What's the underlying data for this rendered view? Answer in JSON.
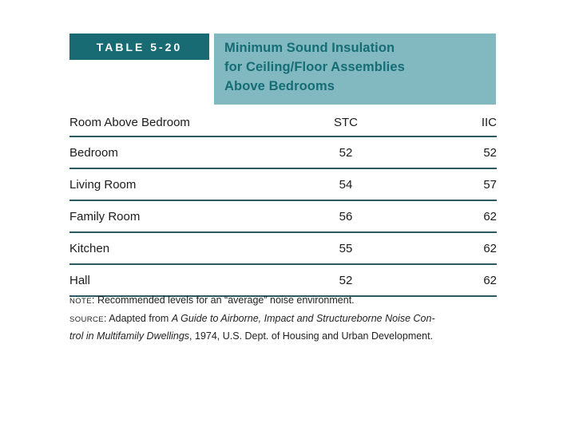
{
  "colors": {
    "badge_bg": "#186a73",
    "panel_bg": "#82b8c0",
    "title_text": "#156d76",
    "rule": "#2c5963",
    "body_text": "#1b1b1b"
  },
  "table": {
    "tag": "TABLE 5-20",
    "title_lines": [
      "Minimum Sound Insulation",
      "for Ceiling/Floor Assemblies",
      "Above Bedrooms"
    ],
    "columns": [
      "Room Above Bedroom",
      "STC",
      "IIC"
    ],
    "rows": [
      {
        "room": "Bedroom",
        "stc": "52",
        "iic": "52"
      },
      {
        "room": "Living Room",
        "stc": "54",
        "iic": "57"
      },
      {
        "room": "Family Room",
        "stc": "56",
        "iic": "62"
      },
      {
        "room": "Kitchen",
        "stc": "55",
        "iic": "62"
      },
      {
        "room": "Hall",
        "stc": "52",
        "iic": "62"
      }
    ]
  },
  "footnotes": {
    "note_label": "NOTE",
    "note_text": ": Recommended levels for an “average” noise environment.",
    "source_label": "SOURCE",
    "source_prefix": ": Adapted from ",
    "source_title_line1_italic": "A Guide to Airborne, Impact and Structureborne Noise Con-",
    "source_title_line2_italic": "trol in Multifamily Dwellings",
    "source_suffix": ", 1974, U.S. Dept. of Housing and Urban Development."
  }
}
